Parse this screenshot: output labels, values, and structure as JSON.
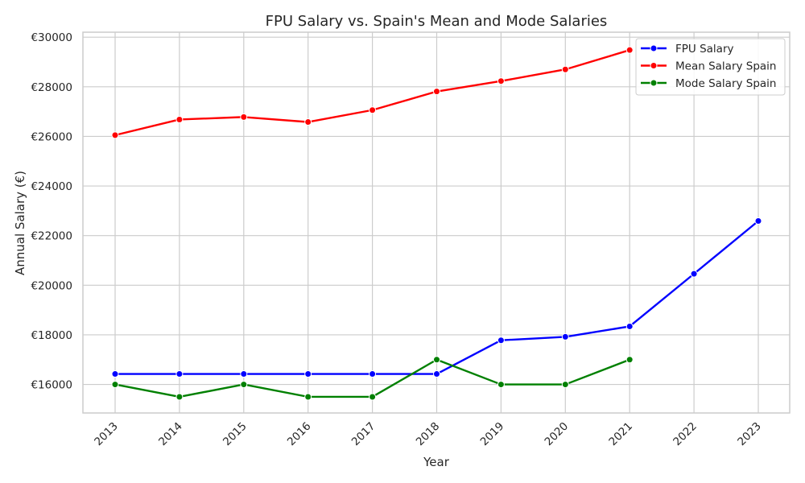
{
  "chart_data": {
    "type": "line",
    "title": "FPU Salary vs. Spain's Mean and Mode Salaries",
    "xlabel": "Year",
    "ylabel": "Annual Salary (€)",
    "categories": [
      "2013",
      "2014",
      "2015",
      "2016",
      "2017",
      "2018",
      "2019",
      "2020",
      "2021",
      "2022",
      "2023"
    ],
    "y_ticks": [
      16000,
      18000,
      20000,
      22000,
      24000,
      26000,
      28000,
      30000
    ],
    "y_tick_prefix": "€",
    "ylim": [
      14850,
      30200
    ],
    "grid": true,
    "legend_position": "top-right",
    "series": [
      {
        "name": "FPU Salary",
        "color": "#0000ff",
        "values": [
          16422,
          16422,
          16422,
          16422,
          16422,
          16422,
          17780,
          17920,
          18340,
          20460,
          22590
        ]
      },
      {
        "name": "Mean Salary Spain",
        "color": "#ff0000",
        "values": [
          26050,
          26680,
          26780,
          26580,
          27060,
          27810,
          28230,
          28700,
          29480,
          null,
          null
        ]
      },
      {
        "name": "Mode Salary Spain",
        "color": "#008000",
        "values": [
          16000,
          15500,
          16000,
          15500,
          15500,
          17000,
          16000,
          16000,
          17000,
          null,
          null
        ]
      }
    ]
  }
}
